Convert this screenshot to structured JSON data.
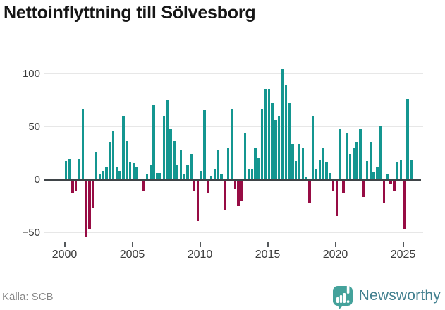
{
  "title": "Nettoinflyttning till Sölvesborg",
  "footer": {
    "source": "Källa: SCB"
  },
  "logo": {
    "text": "Newsworthy",
    "icon": "newsworthy-bubble-barchart-icon"
  },
  "colors": {
    "positive": "#149690",
    "negative": "#970c44",
    "axis": "#3f4447",
    "grid": "#e7e7e7",
    "tick_label": "#3b3b3b",
    "title": "#161616",
    "source": "#878787",
    "logo_bubble": "#44a29b",
    "logo_text": "#42808f"
  },
  "chart_data": {
    "type": "bar",
    "title": "Nettoinflyttning till Sölvesborg",
    "frequency": "quarterly",
    "x_start": {
      "year": 2000,
      "quarter": 1
    },
    "x_end": {
      "year": 2025,
      "quarter": 3
    },
    "values": [
      17,
      19,
      -12,
      -10,
      19,
      66,
      -53,
      -46,
      -26,
      26,
      5,
      8,
      12,
      35,
      46,
      12,
      8,
      60,
      36,
      16,
      15,
      12,
      0,
      -10,
      5,
      14,
      70,
      6,
      6,
      60,
      75,
      48,
      36,
      14,
      27,
      5,
      13,
      24,
      -10,
      -38,
      8,
      65,
      -11,
      3,
      10,
      28,
      5,
      -27,
      30,
      66,
      -7,
      -24,
      -19,
      43,
      10,
      10,
      29,
      20,
      66,
      85,
      85,
      72,
      56,
      60,
      104,
      89,
      72,
      33,
      17,
      33,
      29,
      2,
      -21,
      60,
      9,
      18,
      30,
      16,
      6,
      -10,
      -33,
      48,
      -11,
      44,
      24,
      29,
      35,
      48,
      -15,
      17,
      35,
      7,
      11,
      50,
      -21,
      5,
      -3,
      -9,
      16,
      18,
      -46,
      76,
      18
    ],
    "x_tick_years": [
      2000,
      2005,
      2010,
      2015,
      2020,
      2025
    ],
    "y_ticks": [
      100,
      50,
      0,
      -50
    ],
    "y_tick_labels": [
      "100",
      "50",
      "0",
      "−50"
    ],
    "ylim": [
      -62,
      115
    ],
    "xlabel": "",
    "ylabel": "",
    "grid": "horizontal",
    "legend": "none",
    "positive_color": "#149690",
    "negative_color": "#970c44"
  }
}
